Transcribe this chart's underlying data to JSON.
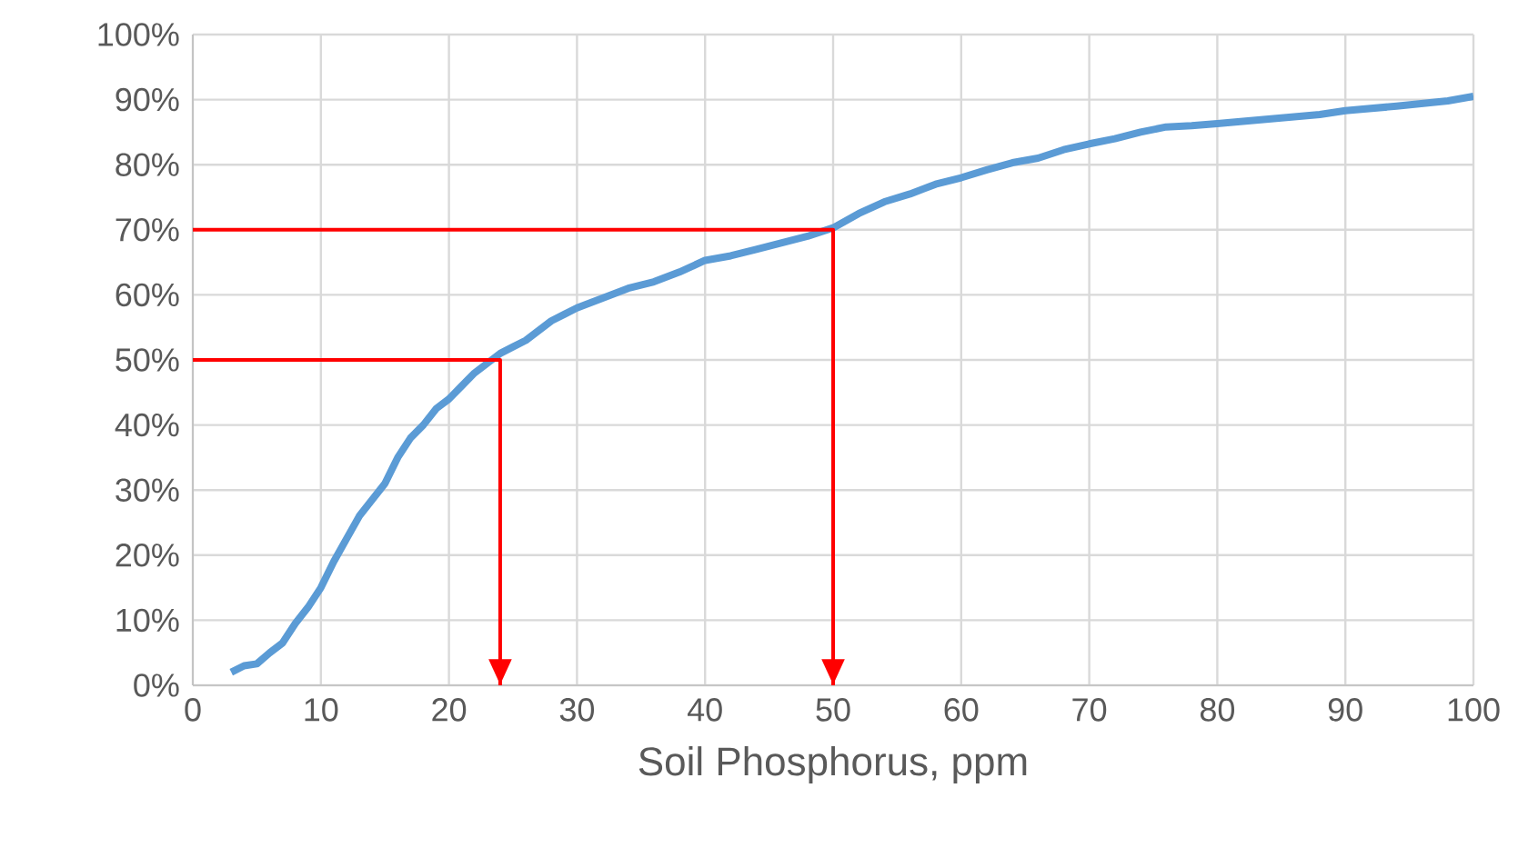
{
  "chart_data": {
    "type": "line",
    "xlabel": "Soil Phosphorus, ppm",
    "xlim": [
      0,
      100
    ],
    "xticks": [
      0,
      10,
      20,
      30,
      40,
      50,
      60,
      70,
      80,
      90,
      100
    ],
    "ylim": [
      0,
      100
    ],
    "yticks": [
      {
        "value": 0,
        "label": "0%"
      },
      {
        "value": 10,
        "label": "10%"
      },
      {
        "value": 20,
        "label": "20%"
      },
      {
        "value": 30,
        "label": "30%"
      },
      {
        "value": 40,
        "label": "40%"
      },
      {
        "value": 50,
        "label": "50%"
      },
      {
        "value": 60,
        "label": "60%"
      },
      {
        "value": 70,
        "label": "70%"
      },
      {
        "value": 80,
        "label": "80%"
      },
      {
        "value": 90,
        "label": "90%"
      },
      {
        "value": 100,
        "label": "100%"
      }
    ],
    "grid": true,
    "legend": false,
    "marker": "none",
    "series": [
      {
        "color": "#5b9bd5",
        "x": [
          3,
          4,
          5,
          6,
          7,
          8,
          9,
          10,
          11,
          12,
          13,
          14,
          15,
          16,
          17,
          18,
          19,
          20,
          21,
          22,
          23,
          24,
          25,
          26,
          27,
          28,
          29,
          30,
          32,
          34,
          36,
          38,
          40,
          42,
          44,
          46,
          48,
          50,
          52,
          54,
          56,
          58,
          60,
          62,
          64,
          66,
          68,
          70,
          72,
          74,
          76,
          78,
          80,
          84,
          88,
          90,
          94,
          98,
          100
        ],
        "values": [
          2,
          3,
          3.3,
          5,
          6.5,
          9.5,
          12,
          15,
          19,
          22.5,
          26,
          28.5,
          31,
          35,
          38,
          40,
          42.5,
          44,
          46,
          48,
          49.5,
          51,
          52,
          53,
          54.5,
          56,
          57,
          58,
          59.5,
          61,
          62,
          63.5,
          65.3,
          66,
          67,
          68,
          69,
          70.3,
          72.5,
          74.3,
          75.5,
          77,
          78,
          79.2,
          80.3,
          81,
          82.3,
          83.2,
          84,
          85,
          85.8,
          86,
          86.3,
          87,
          87.7,
          88.3,
          89,
          89.8,
          90.5
        ]
      },
      {
        "color": "#ff0000",
        "x": [
          0,
          24,
          24
        ],
        "values": [
          50,
          50,
          0
        ]
      },
      {
        "color": "#ff0000",
        "x": [
          0,
          50,
          50
        ],
        "values": [
          70,
          70,
          0
        ]
      }
    ]
  }
}
